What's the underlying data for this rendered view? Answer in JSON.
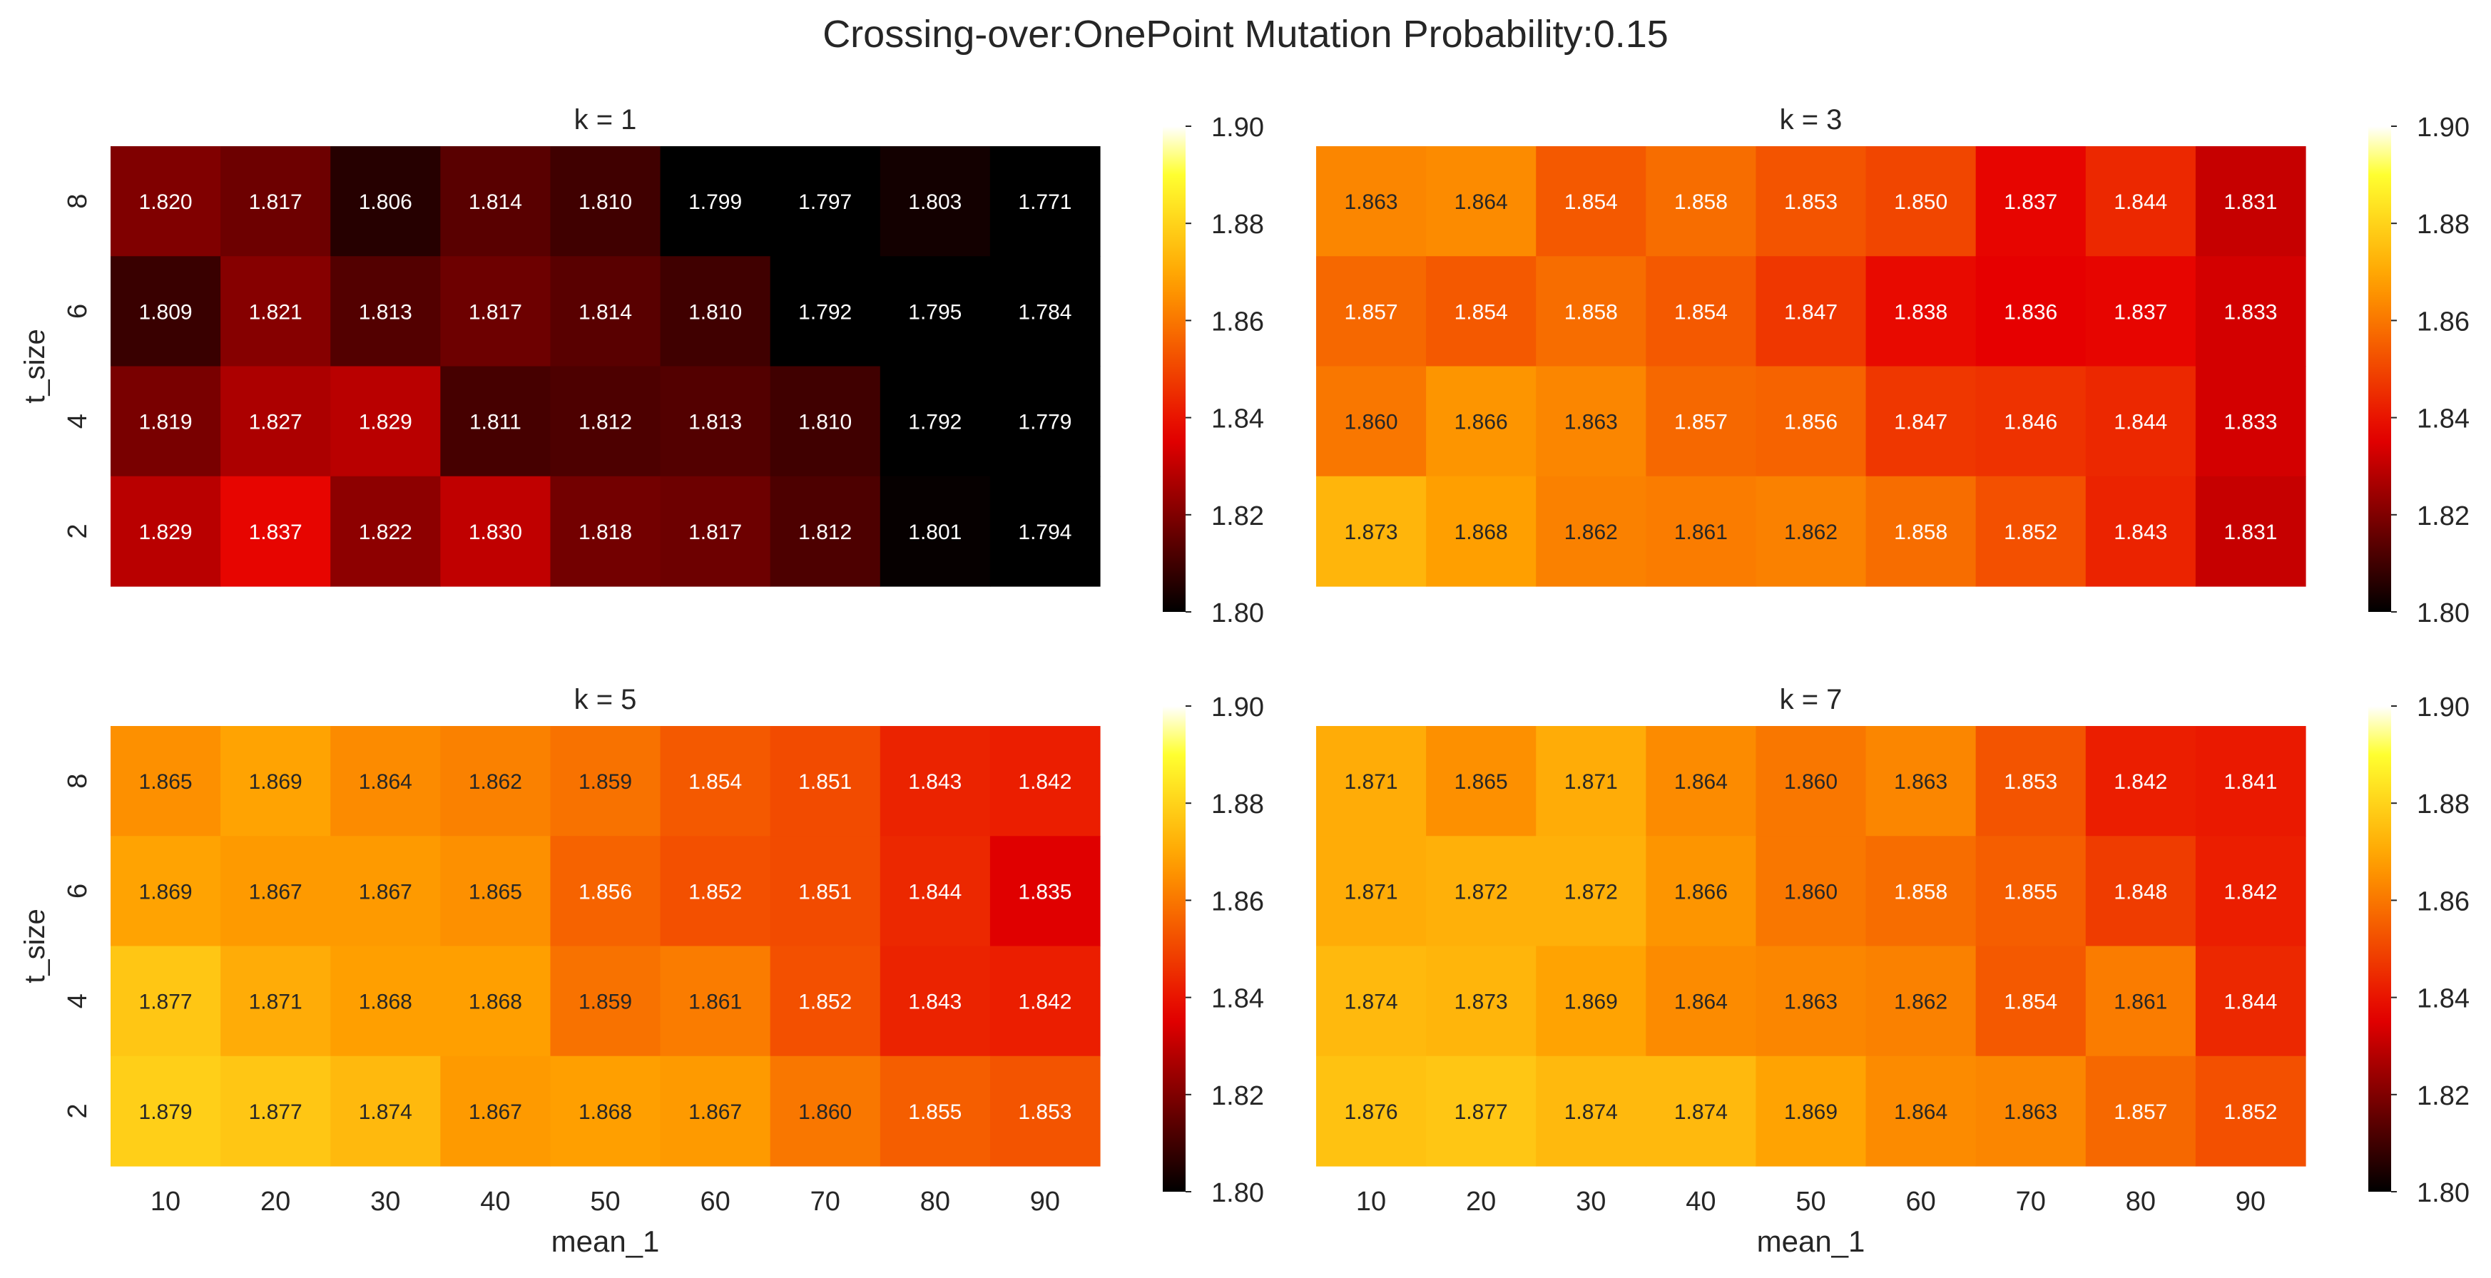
{
  "suptitle": "Crossing-over:OnePoint Mutation Probability:0.15",
  "colormap": {
    "name": "hot",
    "stops": [
      "#000000",
      "#e60000",
      "#ff9f00",
      "#ffff30",
      "#ffffff"
    ]
  },
  "chart_data": [
    {
      "type": "heatmap",
      "title": "k = 1",
      "xlabel": "",
      "ylabel": "t_size",
      "x": [
        10,
        20,
        30,
        40,
        50,
        60,
        70,
        80,
        90
      ],
      "y": [
        8,
        6,
        4,
        2
      ],
      "values": [
        [
          1.82,
          1.817,
          1.806,
          1.814,
          1.81,
          1.799,
          1.797,
          1.803,
          1.771
        ],
        [
          1.809,
          1.821,
          1.813,
          1.817,
          1.814,
          1.81,
          1.792,
          1.795,
          1.784
        ],
        [
          1.819,
          1.827,
          1.829,
          1.811,
          1.812,
          1.813,
          1.81,
          1.792,
          1.779
        ],
        [
          1.829,
          1.837,
          1.822,
          1.83,
          1.818,
          1.817,
          1.812,
          1.801,
          1.794
        ]
      ],
      "vmin": 1.8,
      "vmax": 1.9,
      "colorbar_ticks": [
        "1.80",
        "1.82",
        "1.84",
        "1.86",
        "1.88",
        "1.90"
      ],
      "show_xticklabels": false,
      "show_yticklabels": true
    },
    {
      "type": "heatmap",
      "title": "k = 3",
      "xlabel": "",
      "ylabel": "",
      "x": [
        10,
        20,
        30,
        40,
        50,
        60,
        70,
        80,
        90
      ],
      "y": [
        8,
        6,
        4,
        2
      ],
      "values": [
        [
          1.863,
          1.864,
          1.854,
          1.858,
          1.853,
          1.85,
          1.837,
          1.844,
          1.831
        ],
        [
          1.857,
          1.854,
          1.858,
          1.854,
          1.847,
          1.838,
          1.836,
          1.837,
          1.833
        ],
        [
          1.86,
          1.866,
          1.863,
          1.857,
          1.856,
          1.847,
          1.846,
          1.844,
          1.833
        ],
        [
          1.873,
          1.868,
          1.862,
          1.861,
          1.862,
          1.858,
          1.852,
          1.843,
          1.831
        ]
      ],
      "vmin": 1.8,
      "vmax": 1.9,
      "colorbar_ticks": [
        "1.80",
        "1.82",
        "1.84",
        "1.86",
        "1.88",
        "1.90"
      ],
      "show_xticklabels": false,
      "show_yticklabels": false
    },
    {
      "type": "heatmap",
      "title": "k = 5",
      "xlabel": "mean_1",
      "ylabel": "t_size",
      "x": [
        10,
        20,
        30,
        40,
        50,
        60,
        70,
        80,
        90
      ],
      "y": [
        8,
        6,
        4,
        2
      ],
      "values": [
        [
          1.865,
          1.869,
          1.864,
          1.862,
          1.859,
          1.854,
          1.851,
          1.843,
          1.842
        ],
        [
          1.869,
          1.867,
          1.867,
          1.865,
          1.856,
          1.852,
          1.851,
          1.844,
          1.835
        ],
        [
          1.877,
          1.871,
          1.868,
          1.868,
          1.859,
          1.861,
          1.852,
          1.843,
          1.842
        ],
        [
          1.879,
          1.877,
          1.874,
          1.867,
          1.868,
          1.867,
          1.86,
          1.855,
          1.853
        ]
      ],
      "vmin": 1.8,
      "vmax": 1.9,
      "colorbar_ticks": [
        "1.80",
        "1.82",
        "1.84",
        "1.86",
        "1.88",
        "1.90"
      ],
      "show_xticklabels": true,
      "show_yticklabels": true
    },
    {
      "type": "heatmap",
      "title": "k = 7",
      "xlabel": "mean_1",
      "ylabel": "",
      "x": [
        10,
        20,
        30,
        40,
        50,
        60,
        70,
        80,
        90
      ],
      "y": [
        8,
        6,
        4,
        2
      ],
      "values": [
        [
          1.871,
          1.865,
          1.871,
          1.864,
          1.86,
          1.863,
          1.853,
          1.842,
          1.841
        ],
        [
          1.871,
          1.872,
          1.872,
          1.866,
          1.86,
          1.858,
          1.855,
          1.848,
          1.842
        ],
        [
          1.874,
          1.873,
          1.869,
          1.864,
          1.863,
          1.862,
          1.854,
          1.861,
          1.844
        ],
        [
          1.876,
          1.877,
          1.874,
          1.874,
          1.869,
          1.864,
          1.863,
          1.857,
          1.852
        ]
      ],
      "vmin": 1.8,
      "vmax": 1.9,
      "colorbar_ticks": [
        "1.80",
        "1.82",
        "1.84",
        "1.86",
        "1.88",
        "1.90"
      ],
      "show_xticklabels": true,
      "show_yticklabels": false
    }
  ]
}
